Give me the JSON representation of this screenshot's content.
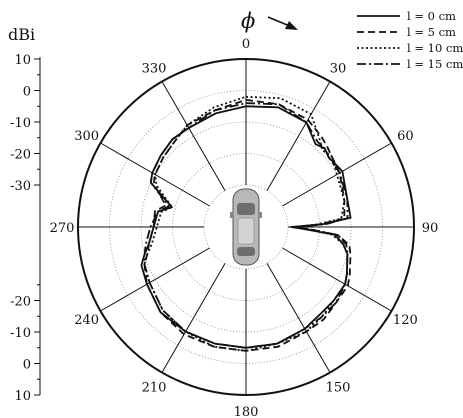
{
  "chart_data": {
    "type": "polar-line",
    "radial_unit_label": "dBi",
    "azimuth_symbol": "ϕ",
    "radial_range": [
      -30,
      10
    ],
    "radial_ticks_lower": [
      "10",
      "0",
      "-10",
      "-20",
      "-30"
    ],
    "radial_ticks_upper": [
      "-30",
      "-20",
      "-10",
      "0",
      "10"
    ],
    "radial_grid_values": [
      -20,
      -10,
      0
    ],
    "angle_labels": [
      {
        "angle": 0,
        "label": "0"
      },
      {
        "angle": 30,
        "label": "30"
      },
      {
        "angle": 60,
        "label": "60"
      },
      {
        "angle": 90,
        "label": "90"
      },
      {
        "angle": 120,
        "label": "120"
      },
      {
        "angle": 150,
        "label": "150"
      },
      {
        "angle": 180,
        "label": "180"
      },
      {
        "angle": 210,
        "label": "210"
      },
      {
        "angle": 240,
        "label": "240"
      },
      {
        "angle": 270,
        "label": "270"
      },
      {
        "angle": 300,
        "label": "300"
      },
      {
        "angle": 330,
        "label": "330"
      }
    ],
    "legend_position": "top-right",
    "series": [
      {
        "name": "l = 0 cm",
        "dash": "",
        "angles": [
          0,
          15,
          30,
          40,
          45,
          50,
          60,
          75,
          85,
          88,
          90,
          92,
          95,
          100,
          105,
          115,
          120,
          130,
          140,
          150,
          165,
          180,
          195,
          210,
          225,
          240,
          250,
          255,
          260,
          270,
          280,
          285,
          295,
          300,
          310,
          320,
          330,
          345,
          360
        ],
        "values": [
          -5,
          -4,
          -5,
          -9,
          -8,
          -9,
          -8,
          -10,
          -10,
          -19,
          -29,
          -25,
          -15,
          -12,
          -10,
          -8,
          -7,
          -7,
          -7,
          -6,
          -5,
          -5,
          -5,
          -5,
          -5,
          -7,
          -8,
          -10,
          -12,
          -14,
          -15,
          -19,
          -10,
          -9,
          -8,
          -7,
          -7,
          -6,
          -5
        ]
      },
      {
        "name": "l = 5 cm",
        "dash": "7,4",
        "angles": [
          0,
          15,
          30,
          40,
          45,
          50,
          60,
          75,
          85,
          88,
          90,
          92,
          95,
          100,
          105,
          115,
          120,
          130,
          140,
          150,
          165,
          180,
          195,
          210,
          225,
          240,
          250,
          255,
          260,
          270,
          280,
          285,
          295,
          300,
          310,
          320,
          330,
          345,
          360
        ],
        "values": [
          -3,
          -3,
          -4,
          -6,
          -7,
          -8,
          -9,
          -11,
          -12,
          -20,
          -28,
          -24,
          -14,
          -10,
          -9,
          -7,
          -6,
          -6,
          -5,
          -5,
          -4,
          -4,
          -4,
          -4,
          -5,
          -7,
          -9,
          -11,
          -12,
          -14,
          -14,
          -17,
          -11,
          -10,
          -9,
          -8,
          -6,
          -5,
          -3
        ]
      },
      {
        "name": "l = 10 cm",
        "dash": "2,2.5",
        "angles": [
          0,
          15,
          30,
          40,
          45,
          50,
          60,
          75,
          85,
          88,
          90,
          92,
          95,
          100,
          105,
          115,
          120,
          130,
          140,
          150,
          165,
          180,
          195,
          210,
          225,
          240,
          250,
          255,
          260,
          270,
          280,
          285,
          295,
          300,
          310,
          320,
          330,
          345,
          360
        ],
        "values": [
          -2,
          -1,
          -2,
          -7,
          -9,
          -8,
          -10,
          -11,
          -13,
          -21,
          -27,
          -24,
          -16,
          -12,
          -10,
          -8,
          -7,
          -7,
          -6,
          -5,
          -5,
          -4,
          -4,
          -5,
          -6,
          -8,
          -9,
          -11,
          -13,
          -15,
          -16,
          -19,
          -12,
          -10,
          -9,
          -8,
          -6,
          -4,
          -2
        ]
      },
      {
        "name": "l = 15 cm",
        "dash": "9,3,2,3",
        "angles": [
          0,
          15,
          30,
          40,
          45,
          50,
          60,
          75,
          85,
          88,
          90,
          92,
          95,
          100,
          105,
          115,
          120,
          130,
          140,
          150,
          165,
          180,
          195,
          210,
          225,
          240,
          250,
          255,
          260,
          270,
          280,
          285,
          295,
          300,
          310,
          320,
          330,
          345,
          360
        ],
        "values": [
          -4,
          -3,
          -5,
          -8,
          -8,
          -9,
          -9,
          -10,
          -11,
          -18,
          -27,
          -23,
          -14,
          -11,
          -10,
          -8,
          -7,
          -6,
          -6,
          -6,
          -5,
          -5,
          -5,
          -5,
          -6,
          -8,
          -9,
          -10,
          -11,
          -13,
          -15,
          -18,
          -10,
          -9,
          -8,
          -7,
          -7,
          -5,
          -4
        ]
      }
    ]
  }
}
